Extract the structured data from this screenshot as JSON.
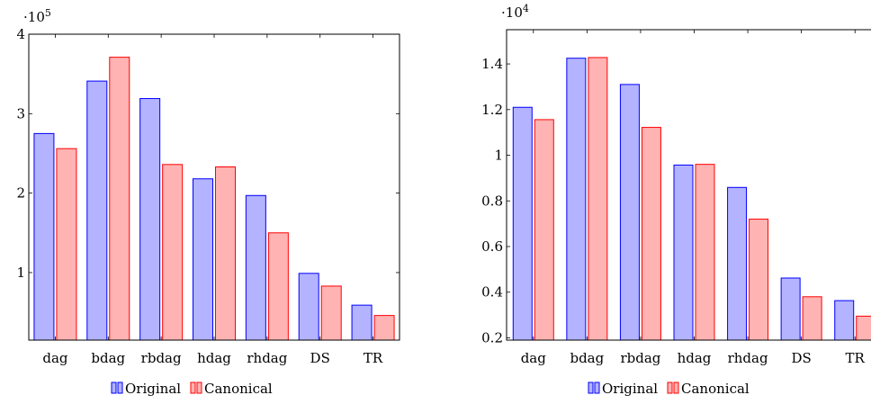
{
  "colors": {
    "original_fill": "#b3b3ff",
    "original_stroke": "#0000ff",
    "canonical_fill": "#ffb3b3",
    "canonical_stroke": "#ff0000"
  },
  "chart_data": [
    {
      "type": "bar",
      "categories": [
        "dag",
        "bdag",
        "rbdag",
        "hdag",
        "rhdag",
        "DS",
        "TR"
      ],
      "series": [
        {
          "name": "Original",
          "values": [
            275000,
            341000,
            319000,
            218000,
            197000,
            99000,
            59000
          ]
        },
        {
          "name": "Canonical",
          "values": [
            256000,
            371000,
            236000,
            233000,
            150000,
            83000,
            46000
          ]
        }
      ],
      "ylim": [
        15000,
        400000
      ],
      "yticks": [
        100000,
        200000,
        300000,
        400000
      ],
      "ytick_labels": [
        "1",
        "2",
        "3",
        "4"
      ],
      "yscale_base": "10",
      "yscale_exp": "5",
      "legend": "bottom-center",
      "grid": false
    },
    {
      "type": "bar",
      "categories": [
        "dag",
        "bdag",
        "rbdag",
        "hdag",
        "rhdag",
        "DS",
        "TR"
      ],
      "series": [
        {
          "name": "Original",
          "values": [
            12100,
            14250,
            13100,
            9570,
            8590,
            4620,
            3630
          ]
        },
        {
          "name": "Canonical",
          "values": [
            11560,
            14280,
            11220,
            9600,
            7200,
            3800,
            2950
          ]
        }
      ],
      "ylim": [
        1900,
        15500
      ],
      "yticks": [
        2000,
        4000,
        6000,
        8000,
        10000,
        12000,
        14000
      ],
      "ytick_labels": [
        "0.2",
        "0.4",
        "0.6",
        "0.8",
        "1",
        "1.2",
        "1.4"
      ],
      "yscale_base": "10",
      "yscale_exp": "4",
      "legend": "bottom-center",
      "grid": false
    }
  ]
}
